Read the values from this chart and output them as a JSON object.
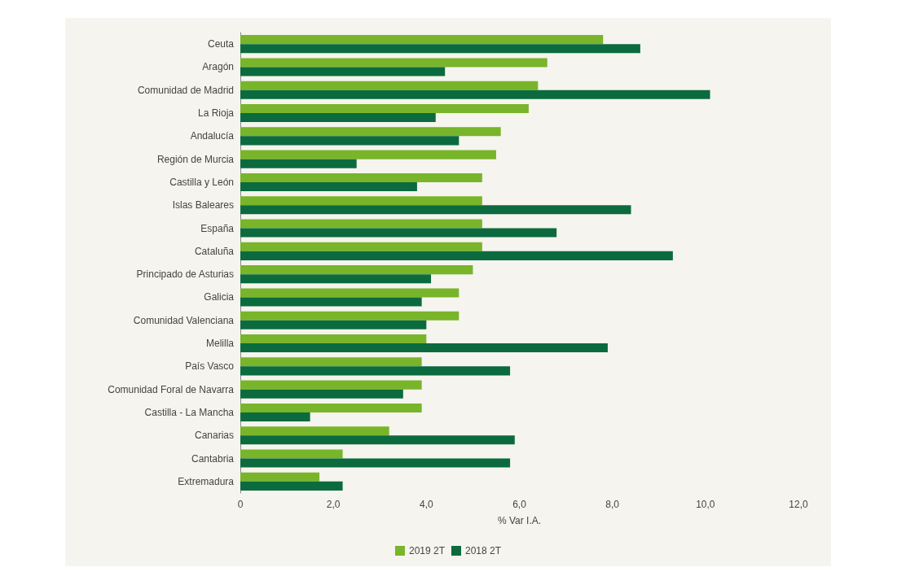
{
  "chart_data": {
    "type": "bar",
    "orientation": "horizontal",
    "xlabel": "% Var I.A.",
    "categories": [
      "Ceuta",
      "Aragón",
      "Comunidad de Madrid",
      "La Rioja",
      "Andalucía",
      "Región de Murcia",
      "Castilla y León",
      "Islas Baleares",
      "España",
      "Cataluña",
      "Principado de Asturias",
      "Galicia",
      "Comunidad Valenciana",
      "Melilla",
      "País Vasco",
      "Comunidad Foral de Navarra",
      "Castilla - La Mancha",
      "Canarias",
      "Cantabria",
      "Extremadura"
    ],
    "series": [
      {
        "name": "2019 2T",
        "color": "#78b52a",
        "values": [
          7.8,
          6.6,
          6.4,
          6.2,
          5.6,
          5.5,
          5.2,
          5.2,
          5.2,
          5.2,
          5.0,
          4.7,
          4.7,
          4.0,
          3.9,
          3.9,
          3.9,
          3.2,
          2.2,
          1.7
        ]
      },
      {
        "name": "2018 2T",
        "color": "#0b6b3e",
        "values": [
          8.6,
          4.4,
          10.1,
          4.2,
          4.7,
          2.5,
          3.8,
          8.4,
          6.8,
          9.3,
          4.1,
          3.9,
          4.0,
          7.9,
          5.8,
          3.5,
          1.5,
          5.9,
          5.8,
          2.2
        ]
      }
    ],
    "xlim": [
      0,
      12
    ],
    "xticks": [
      0,
      {
        "value": 2,
        "label": "2,0"
      },
      {
        "value": 4,
        "label": "4,0"
      },
      {
        "value": 6,
        "label": "6,0"
      },
      {
        "value": 8,
        "label": "8,0"
      },
      {
        "value": 10,
        "label": "10,0"
      },
      {
        "value": 12,
        "label": "12,0"
      }
    ],
    "grid": false,
    "legend": "bottom"
  }
}
